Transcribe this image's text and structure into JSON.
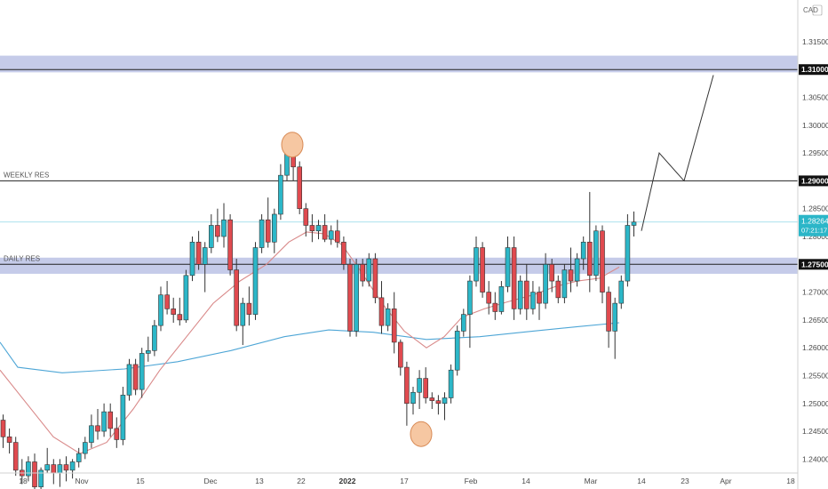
{
  "currency": "CAD",
  "chart_data": {
    "type": "candlestick",
    "ylim": [
      1.2375,
      1.3225
    ],
    "y_ticks": [
      "1.31500",
      "1.30500",
      "1.30000",
      "1.29500",
      "1.28500",
      "1.28000",
      "1.27000",
      "1.26500",
      "1.26000",
      "1.25500",
      "1.25000",
      "1.24500",
      "1.24000"
    ],
    "x_ticks": [
      "18",
      "Nov",
      "15",
      "Dec",
      "13",
      "22",
      "2022",
      "17",
      "Feb",
      "14",
      "Mar",
      "14",
      "23",
      "Apr",
      "18"
    ],
    "zones": [
      {
        "from": 1.3095,
        "to": 1.3125,
        "color": "#c5cbe9"
      },
      {
        "from": 1.2733,
        "to": 1.2762,
        "color": "#c5cbe9"
      }
    ],
    "levels": [
      {
        "value": 1.31,
        "label": "",
        "tag": "1.31000"
      },
      {
        "value": 1.29,
        "label": "WEEKLY RES",
        "tag": "1.29000"
      },
      {
        "value": 1.275,
        "label": "DAILY RES",
        "tag": "1.27500"
      }
    ],
    "current_price": {
      "value": 1.2826,
      "tag": "1.28264",
      "countdown": "07:21:17"
    },
    "candles": [
      [
        1.247,
        1.248,
        1.242,
        1.244
      ],
      [
        1.244,
        1.2455,
        1.241,
        1.243
      ],
      [
        1.243,
        1.244,
        1.237,
        1.238
      ],
      [
        1.238,
        1.24,
        1.2355,
        1.237
      ],
      [
        1.237,
        1.2405,
        1.236,
        1.2395
      ],
      [
        1.2395,
        1.241,
        1.234,
        1.235
      ],
      [
        1.235,
        1.2385,
        1.234,
        1.238
      ],
      [
        1.238,
        1.242,
        1.2375,
        1.239
      ],
      [
        1.239,
        1.24,
        1.2355,
        1.2375
      ],
      [
        1.2375,
        1.24,
        1.235,
        1.239
      ],
      [
        1.239,
        1.2405,
        1.236,
        1.238
      ],
      [
        1.238,
        1.24,
        1.2365,
        1.2395
      ],
      [
        1.2395,
        1.242,
        1.2385,
        1.241
      ],
      [
        1.241,
        1.244,
        1.24,
        1.243
      ],
      [
        1.243,
        1.248,
        1.242,
        1.246
      ],
      [
        1.246,
        1.249,
        1.2435,
        1.245
      ],
      [
        1.245,
        1.25,
        1.244,
        1.2485
      ],
      [
        1.2485,
        1.25,
        1.244,
        1.2455
      ],
      [
        1.2455,
        1.2475,
        1.242,
        1.2435
      ],
      [
        1.2435,
        1.253,
        1.2425,
        1.2515
      ],
      [
        1.2515,
        1.258,
        1.2505,
        1.257
      ],
      [
        1.257,
        1.258,
        1.2515,
        1.2525
      ],
      [
        1.2525,
        1.26,
        1.251,
        1.259
      ],
      [
        1.259,
        1.262,
        1.2575,
        1.2595
      ],
      [
        1.2595,
        1.265,
        1.2585,
        1.264
      ],
      [
        1.264,
        1.271,
        1.263,
        1.2695
      ],
      [
        1.2695,
        1.272,
        1.266,
        1.267
      ],
      [
        1.267,
        1.269,
        1.2645,
        1.266
      ],
      [
        1.266,
        1.269,
        1.264,
        1.265
      ],
      [
        1.265,
        1.274,
        1.2645,
        1.273
      ],
      [
        1.273,
        1.28,
        1.272,
        1.279
      ],
      [
        1.279,
        1.281,
        1.274,
        1.275
      ],
      [
        1.275,
        1.279,
        1.27,
        1.278
      ],
      [
        1.278,
        1.284,
        1.277,
        1.282
      ],
      [
        1.282,
        1.285,
        1.279,
        1.28
      ],
      [
        1.28,
        1.286,
        1.278,
        1.283
      ],
      [
        1.283,
        1.284,
        1.273,
        1.274
      ],
      [
        1.274,
        1.276,
        1.263,
        1.264
      ],
      [
        1.264,
        1.269,
        1.2605,
        1.268
      ],
      [
        1.268,
        1.271,
        1.264,
        1.266
      ],
      [
        1.266,
        1.279,
        1.265,
        1.278
      ],
      [
        1.278,
        1.284,
        1.277,
        1.283
      ],
      [
        1.283,
        1.287,
        1.278,
        1.279
      ],
      [
        1.279,
        1.285,
        1.277,
        1.284
      ],
      [
        1.284,
        1.293,
        1.283,
        1.291
      ],
      [
        1.291,
        1.297,
        1.29,
        1.295
      ],
      [
        1.295,
        1.296,
        1.29,
        1.2925
      ],
      [
        1.2925,
        1.2935,
        1.284,
        1.285
      ],
      [
        1.285,
        1.286,
        1.28,
        1.282
      ],
      [
        1.282,
        1.284,
        1.279,
        1.281
      ],
      [
        1.281,
        1.283,
        1.2795,
        1.282
      ],
      [
        1.282,
        1.284,
        1.279,
        1.2795
      ],
      [
        1.2795,
        1.282,
        1.2785,
        1.281
      ],
      [
        1.281,
        1.283,
        1.278,
        1.279
      ],
      [
        1.279,
        1.28,
        1.274,
        1.275
      ],
      [
        1.275,
        1.276,
        1.262,
        1.263
      ],
      [
        1.263,
        1.276,
        1.262,
        1.275
      ],
      [
        1.275,
        1.276,
        1.271,
        1.272
      ],
      [
        1.272,
        1.277,
        1.271,
        1.276
      ],
      [
        1.276,
        1.277,
        1.268,
        1.269
      ],
      [
        1.269,
        1.272,
        1.2625,
        1.264
      ],
      [
        1.264,
        1.268,
        1.263,
        1.267
      ],
      [
        1.267,
        1.27,
        1.259,
        1.261
      ],
      [
        1.261,
        1.2615,
        1.255,
        1.2565
      ],
      [
        1.2565,
        1.2575,
        1.246,
        1.25
      ],
      [
        1.25,
        1.253,
        1.248,
        1.252
      ],
      [
        1.252,
        1.256,
        1.249,
        1.2545
      ],
      [
        1.2545,
        1.2565,
        1.25,
        1.251
      ],
      [
        1.251,
        1.252,
        1.249,
        1.2505
      ],
      [
        1.2505,
        1.2515,
        1.248,
        1.25
      ],
      [
        1.25,
        1.252,
        1.247,
        1.251
      ],
      [
        1.251,
        1.257,
        1.25,
        1.256
      ],
      [
        1.256,
        1.264,
        1.255,
        1.263
      ],
      [
        1.263,
        1.267,
        1.262,
        1.266
      ],
      [
        1.266,
        1.273,
        1.26,
        1.272
      ],
      [
        1.272,
        1.28,
        1.271,
        1.278
      ],
      [
        1.278,
        1.279,
        1.269,
        1.27
      ],
      [
        1.27,
        1.272,
        1.266,
        1.268
      ],
      [
        1.268,
        1.27,
        1.265,
        1.2665
      ],
      [
        1.2665,
        1.272,
        1.266,
        1.271
      ],
      [
        1.271,
        1.28,
        1.27,
        1.278
      ],
      [
        1.278,
        1.28,
        1.265,
        1.267
      ],
      [
        1.267,
        1.273,
        1.266,
        1.272
      ],
      [
        1.272,
        1.275,
        1.265,
        1.267
      ],
      [
        1.267,
        1.272,
        1.266,
        1.27
      ],
      [
        1.27,
        1.271,
        1.265,
        1.268
      ],
      [
        1.268,
        1.277,
        1.267,
        1.275
      ],
      [
        1.275,
        1.276,
        1.27,
        1.272
      ],
      [
        1.272,
        1.273,
        1.268,
        1.269
      ],
      [
        1.269,
        1.275,
        1.268,
        1.274
      ],
      [
        1.274,
        1.278,
        1.27,
        1.272
      ],
      [
        1.272,
        1.277,
        1.271,
        1.276
      ],
      [
        1.276,
        1.28,
        1.274,
        1.279
      ],
      [
        1.279,
        1.288,
        1.27,
        1.273
      ],
      [
        1.273,
        1.282,
        1.272,
        1.281
      ],
      [
        1.281,
        1.282,
        1.268,
        1.27
      ],
      [
        1.27,
        1.271,
        1.26,
        1.263
      ],
      [
        1.263,
        1.269,
        1.258,
        1.268
      ],
      [
        1.268,
        1.273,
        1.267,
        1.272
      ],
      [
        1.272,
        1.284,
        1.271,
        1.282
      ],
      [
        1.282,
        1.2845,
        1.28,
        1.2826
      ]
    ],
    "ema_slow": [
      [
        0,
        1.261
      ],
      [
        20,
        1.2565
      ],
      [
        45,
        1.256
      ],
      [
        70,
        1.2555
      ],
      [
        100,
        1.2558
      ],
      [
        140,
        1.2562
      ],
      [
        200,
        1.2575
      ],
      [
        260,
        1.2595
      ],
      [
        320,
        1.262
      ],
      [
        370,
        1.2632
      ],
      [
        420,
        1.2628
      ],
      [
        480,
        1.2615
      ],
      [
        540,
        1.262
      ],
      [
        600,
        1.263
      ],
      [
        650,
        1.2638
      ],
      [
        697,
        1.2645
      ]
    ],
    "ema_fast": [
      [
        0,
        1.256
      ],
      [
        30,
        1.25
      ],
      [
        60,
        1.244
      ],
      [
        90,
        1.241
      ],
      [
        120,
        1.243
      ],
      [
        150,
        1.249
      ],
      [
        180,
        1.256
      ],
      [
        210,
        1.262
      ],
      [
        240,
        1.268
      ],
      [
        270,
        1.272
      ],
      [
        300,
        1.275
      ],
      [
        325,
        1.279
      ],
      [
        345,
        1.2808
      ],
      [
        365,
        1.2805
      ],
      [
        385,
        1.2785
      ],
      [
        405,
        1.274
      ],
      [
        430,
        1.268
      ],
      [
        455,
        1.263
      ],
      [
        480,
        1.26
      ],
      [
        500,
        1.262
      ],
      [
        520,
        1.2655
      ],
      [
        545,
        1.267
      ],
      [
        570,
        1.2682
      ],
      [
        600,
        1.2695
      ],
      [
        625,
        1.271
      ],
      [
        650,
        1.272
      ],
      [
        675,
        1.2725
      ],
      [
        697,
        1.2745
      ]
    ],
    "projection": [
      [
        722,
        1.281
      ],
      [
        742,
        1.295
      ],
      [
        770,
        1.29
      ],
      [
        803,
        1.309
      ]
    ],
    "circles": [
      [
        329,
        1.2965
      ],
      [
        474,
        1.2445
      ]
    ]
  }
}
